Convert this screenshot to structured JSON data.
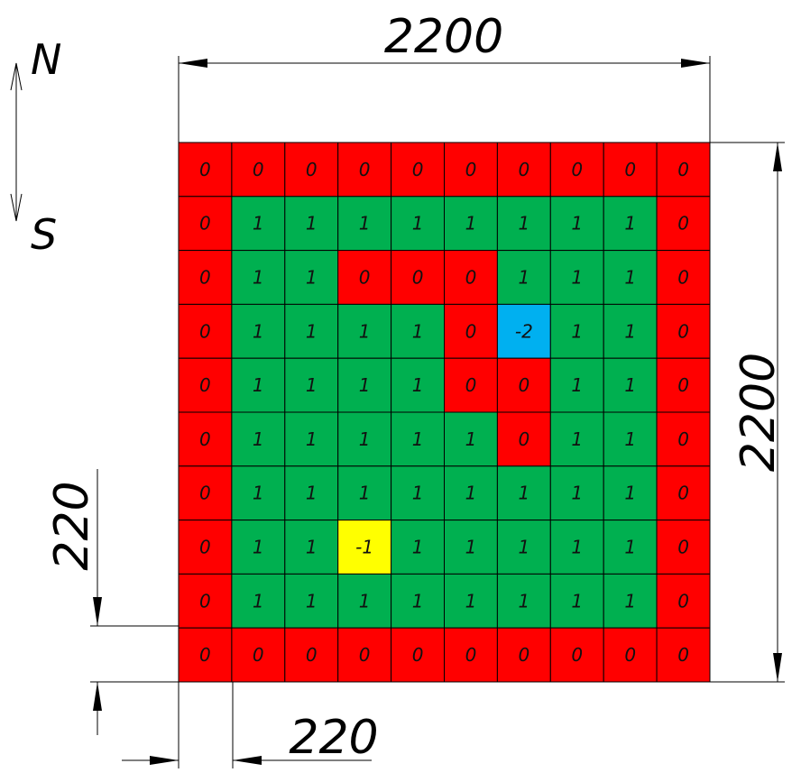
{
  "compass": {
    "north": "N",
    "south": "S"
  },
  "dimensions": {
    "top_width": "2200",
    "right_height": "2200",
    "cell_width": "220",
    "cell_height": "220"
  },
  "colors": {
    "wall": "#ff0000",
    "open": "#00b050",
    "start": "#ffff00",
    "goal": "#00b0f0"
  },
  "grid": [
    [
      "0",
      "0",
      "0",
      "0",
      "0",
      "0",
      "0",
      "0",
      "0",
      "0"
    ],
    [
      "0",
      "1",
      "1",
      "1",
      "1",
      "1",
      "1",
      "1",
      "1",
      "0"
    ],
    [
      "0",
      "1",
      "1",
      "0",
      "0",
      "0",
      "1",
      "1",
      "1",
      "0"
    ],
    [
      "0",
      "1",
      "1",
      "1",
      "1",
      "0",
      "-2",
      "1",
      "1",
      "0"
    ],
    [
      "0",
      "1",
      "1",
      "1",
      "1",
      "0",
      "0",
      "1",
      "1",
      "0"
    ],
    [
      "0",
      "1",
      "1",
      "1",
      "1",
      "1",
      "0",
      "1",
      "1",
      "0"
    ],
    [
      "0",
      "1",
      "1",
      "1",
      "1",
      "1",
      "1",
      "1",
      "1",
      "0"
    ],
    [
      "0",
      "1",
      "1",
      "-1",
      "1",
      "1",
      "1",
      "1",
      "1",
      "0"
    ],
    [
      "0",
      "1",
      "1",
      "1",
      "1",
      "1",
      "1",
      "1",
      "1",
      "0"
    ],
    [
      "0",
      "0",
      "0",
      "0",
      "0",
      "0",
      "0",
      "0",
      "0",
      "0"
    ]
  ]
}
